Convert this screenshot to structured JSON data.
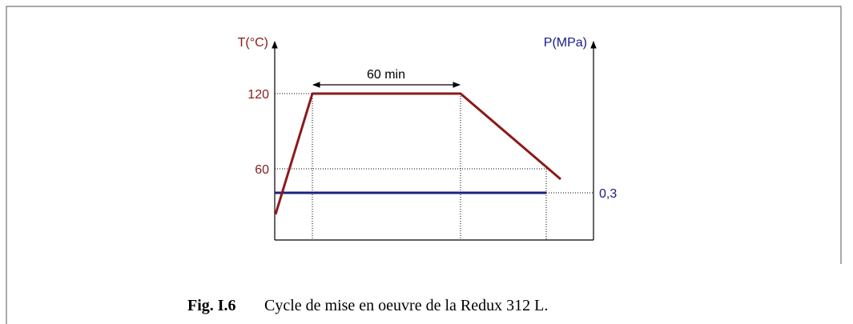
{
  "diagram": {
    "left_axis": {
      "label": "T(°C)",
      "ticks": [
        120,
        60
      ]
    },
    "right_axis": {
      "label": "P(MPa)",
      "ticks": [
        "0,3"
      ]
    },
    "annotation": "60 min",
    "caption": {
      "number": "Fig. I.6",
      "text": "Cycle de mise en oeuvre de la Redux 312 L."
    }
  }
}
